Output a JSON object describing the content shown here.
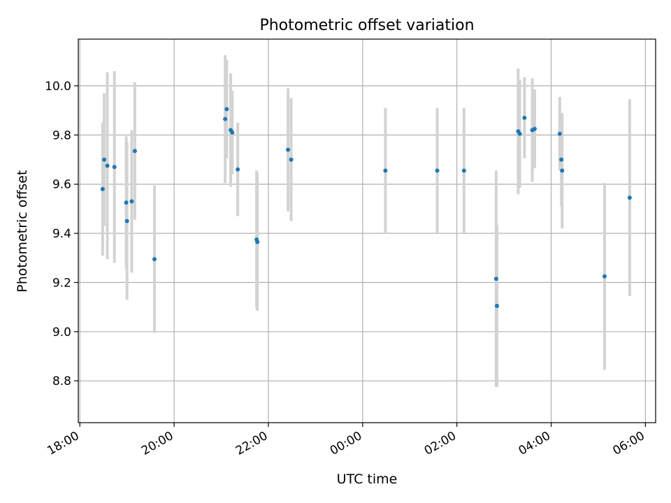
{
  "chart_data": {
    "type": "scatter",
    "title": "Photometric offset variation",
    "xlabel": "UTC time",
    "ylabel": "Photometric offset",
    "x_axis_type": "time",
    "xlim": [
      "2000-01-01T17:58",
      "2000-01-02T06:13"
    ],
    "ylim": [
      8.63,
      10.19
    ],
    "grid": true,
    "legend": "none",
    "colors": {
      "points": "#1f77b4",
      "errorbars": "#d3d3d3",
      "grid": "#b0b0b0",
      "frame": "#000000"
    },
    "x_ticks": [
      {
        "t": "2000-01-01T18:00",
        "label": "18:00"
      },
      {
        "t": "2000-01-01T20:00",
        "label": "20:00"
      },
      {
        "t": "2000-01-01T22:00",
        "label": "22:00"
      },
      {
        "t": "2000-01-02T00:00",
        "label": "00:00"
      },
      {
        "t": "2000-01-02T02:00",
        "label": "02:00"
      },
      {
        "t": "2000-01-02T04:00",
        "label": "04:00"
      },
      {
        "t": "2000-01-02T06:00",
        "label": "06:00"
      }
    ],
    "y_ticks": [
      {
        "v": 8.8,
        "label": "8.8"
      },
      {
        "v": 9.0,
        "label": "9.0"
      },
      {
        "v": 9.2,
        "label": "9.2"
      },
      {
        "v": 9.4,
        "label": "9.4"
      },
      {
        "v": 9.6,
        "label": "9.6"
      },
      {
        "v": 9.8,
        "label": "9.8"
      },
      {
        "v": 10.0,
        "label": "10.0"
      }
    ],
    "points": [
      {
        "t": "2000-01-01T18:29",
        "y": 9.58,
        "yerr": 0.27
      },
      {
        "t": "2000-01-01T18:31",
        "y": 9.7,
        "yerr": 0.27
      },
      {
        "t": "2000-01-01T18:35",
        "y": 9.675,
        "yerr": 0.38
      },
      {
        "t": "2000-01-01T18:44",
        "y": 9.67,
        "yerr": 0.39
      },
      {
        "t": "2000-01-01T18:59",
        "y": 9.525,
        "yerr": 0.27
      },
      {
        "t": "2000-01-01T19:00",
        "y": 9.45,
        "yerr": 0.32
      },
      {
        "t": "2000-01-01T19:06",
        "y": 9.53,
        "yerr": 0.29
      },
      {
        "t": "2000-01-01T19:10",
        "y": 9.735,
        "yerr": 0.28
      },
      {
        "t": "2000-01-01T19:35",
        "y": 9.295,
        "yerr": 0.3
      },
      {
        "t": "2000-01-01T21:05",
        "y": 9.865,
        "yerr": 0.26
      },
      {
        "t": "2000-01-01T21:07",
        "y": 9.905,
        "yerr": 0.2
      },
      {
        "t": "2000-01-01T21:12",
        "y": 9.82,
        "yerr": 0.23
      },
      {
        "t": "2000-01-01T21:14",
        "y": 9.81,
        "yerr": 0.17
      },
      {
        "t": "2000-01-01T21:21",
        "y": 9.66,
        "yerr": 0.19
      },
      {
        "t": "2000-01-01T21:45",
        "y": 9.375,
        "yerr": 0.28
      },
      {
        "t": "2000-01-01T21:46",
        "y": 9.365,
        "yerr": 0.28
      },
      {
        "t": "2000-01-01T22:25",
        "y": 9.74,
        "yerr": 0.25
      },
      {
        "t": "2000-01-01T22:29",
        "y": 9.7,
        "yerr": 0.25
      },
      {
        "t": "2000-01-02T00:29",
        "y": 9.655,
        "yerr": 0.255
      },
      {
        "t": "2000-01-02T01:35",
        "y": 9.655,
        "yerr": 0.255
      },
      {
        "t": "2000-01-02T02:09",
        "y": 9.655,
        "yerr": 0.255
      },
      {
        "t": "2000-01-02T02:50",
        "y": 9.215,
        "yerr": 0.44
      },
      {
        "t": "2000-01-02T02:51",
        "y": 9.105,
        "yerr": 0.33
      },
      {
        "t": "2000-01-02T03:18",
        "y": 9.815,
        "yerr": 0.255
      },
      {
        "t": "2000-01-02T03:20",
        "y": 9.805,
        "yerr": 0.22
      },
      {
        "t": "2000-01-02T03:26",
        "y": 9.87,
        "yerr": 0.165
      },
      {
        "t": "2000-01-02T03:36",
        "y": 9.82,
        "yerr": 0.21
      },
      {
        "t": "2000-01-02T03:39",
        "y": 9.825,
        "yerr": 0.16
      },
      {
        "t": "2000-01-02T04:11",
        "y": 9.805,
        "yerr": 0.15
      },
      {
        "t": "2000-01-02T04:13",
        "y": 9.7,
        "yerr": 0.19
      },
      {
        "t": "2000-01-02T04:14",
        "y": 9.655,
        "yerr": 0.235
      },
      {
        "t": "2000-01-02T05:08",
        "y": 9.225,
        "yerr": 0.38
      },
      {
        "t": "2000-01-02T05:40",
        "y": 9.545,
        "yerr": 0.4
      }
    ]
  }
}
